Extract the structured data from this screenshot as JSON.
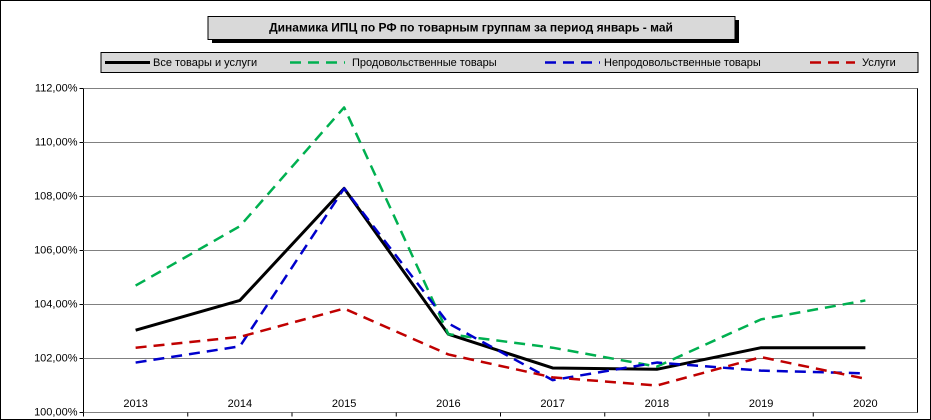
{
  "chart_data": {
    "type": "line",
    "title": "Динамика ИПЦ по РФ по товарным группам за период январь - май",
    "categories": [
      "2013",
      "2014",
      "2015",
      "2016",
      "2017",
      "2018",
      "2019",
      "2020"
    ],
    "series": [
      {
        "name": "Все товары и услуги",
        "color": "#000000",
        "dashed": false,
        "values": [
          103.05,
          104.15,
          108.3,
          102.9,
          101.65,
          101.6,
          102.4,
          102.4
        ]
      },
      {
        "name": "Продовольственные товары",
        "color": "#00b050",
        "dashed": true,
        "values": [
          104.7,
          106.9,
          111.3,
          102.9,
          102.4,
          101.7,
          103.45,
          104.15
        ]
      },
      {
        "name": "Непродовольственные товары",
        "color": "#0000cc",
        "dashed": true,
        "values": [
          101.85,
          102.45,
          108.3,
          103.3,
          101.2,
          101.85,
          101.55,
          101.45
        ]
      },
      {
        "name": "Услуги",
        "color": "#c00000",
        "dashed": true,
        "values": [
          102.4,
          102.8,
          103.85,
          102.15,
          101.3,
          101.0,
          102.05,
          101.25
        ]
      }
    ],
    "ylim": [
      100,
      112
    ],
    "yticks": [
      {
        "value": 100,
        "label": "100,00%"
      },
      {
        "value": 102,
        "label": "102,00%"
      },
      {
        "value": 104,
        "label": "104,00%"
      },
      {
        "value": 106,
        "label": "106,00%"
      },
      {
        "value": 108,
        "label": "108,00%"
      },
      {
        "value": 110,
        "label": "110,00%"
      },
      {
        "value": 112,
        "label": "112,00%"
      }
    ],
    "grid": true
  }
}
